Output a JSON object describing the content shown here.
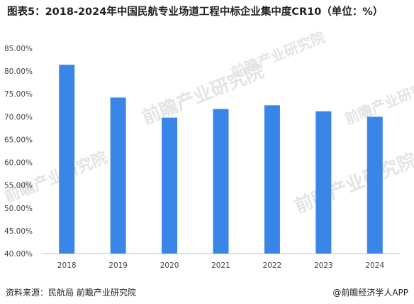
{
  "header": {
    "title": "图表5：2018-2024年中国民航专业场道工程中标企业集中度CR10（单位：%）"
  },
  "chart_data": {
    "type": "bar",
    "title": "图表5：2018-2024年中国民航专业场道工程中标企业集中度CR10（单位：%）",
    "xlabel": "",
    "ylabel": "",
    "categories": [
      "2018",
      "2019",
      "2020",
      "2021",
      "2022",
      "2023",
      "2024"
    ],
    "values": [
      81.4,
      74.2,
      69.8,
      71.7,
      72.5,
      71.2,
      70.0
    ],
    "ylim": [
      40,
      85
    ],
    "yticks": [
      40,
      45,
      50,
      55,
      60,
      65,
      70,
      75,
      80,
      85
    ],
    "ytick_labels": [
      "40.00%",
      "45.00%",
      "50.00%",
      "55.00%",
      "60.00%",
      "65.00%",
      "70.00%",
      "75.00%",
      "80.00%",
      "85.00%"
    ],
    "bar_color": "#3a86e8",
    "grid": false,
    "legend": "none"
  },
  "footer": {
    "source": "资料来源：民航局 前瞻产业研究院",
    "credit": "@前瞻经济学人APP"
  },
  "watermark": {
    "text": "前瞻产业研究院"
  }
}
